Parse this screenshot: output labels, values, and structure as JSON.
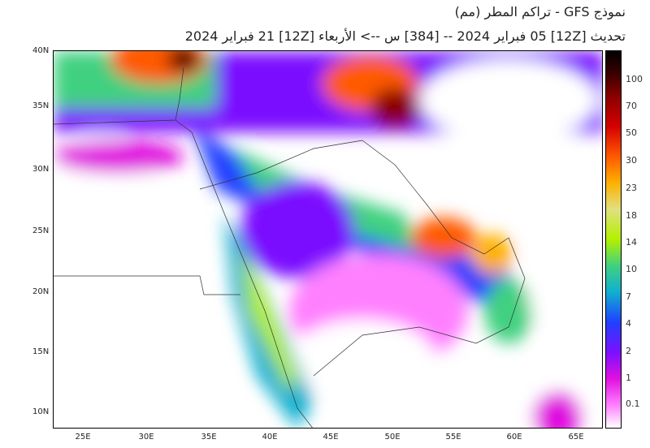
{
  "header": {
    "title": "نموذج GFS - تراكم المطر (مم)",
    "subtitle": "تحديث [12Z] 05 فبراير 2024 -- [384] س --> الأربعاء [12Z] 21 فبراير 2024"
  },
  "axes": {
    "lat_labels": [
      "40N",
      "35N",
      "30N",
      "25N",
      "20N",
      "15N",
      "10N"
    ],
    "lon_labels": [
      "25E",
      "30E",
      "35E",
      "40E",
      "45E",
      "50E",
      "55E",
      "60E",
      "65E"
    ]
  },
  "colorbar": {
    "unit": "mm",
    "labels": [
      "100",
      "70",
      "50",
      "30",
      "23",
      "18",
      "14",
      "10",
      "7",
      "4",
      "2",
      "1",
      "0.1"
    ],
    "colors": [
      "#000000",
      "#8b0000",
      "#d40000",
      "#ff5a00",
      "#ffb000",
      "#e0e080",
      "#b4f000",
      "#40d080",
      "#10b0d0",
      "#2040ff",
      "#7a10ff",
      "#e010e0",
      "#ff80ff",
      "#ffffff"
    ]
  }
}
